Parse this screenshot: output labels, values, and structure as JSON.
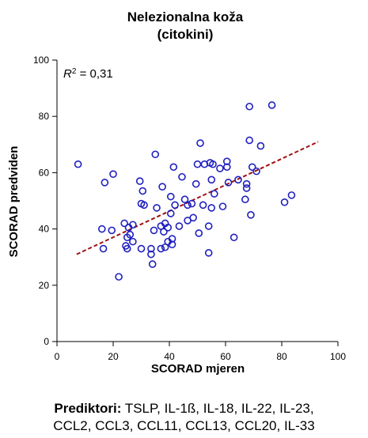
{
  "chart_data": {
    "type": "scatter",
    "title": [
      "Nelezionalna koža",
      "(citokini)"
    ],
    "xlabel": "SCORAD mjeren",
    "ylabel": "SCORAD predviden",
    "xlim": [
      0,
      100
    ],
    "ylim": [
      0,
      100
    ],
    "xticks": [
      0,
      20,
      40,
      60,
      80,
      100
    ],
    "yticks": [
      0,
      20,
      40,
      60,
      80,
      100
    ],
    "annotation": {
      "prefix": "R",
      "sup": "2",
      "suffix": " = 0,31"
    },
    "grid": false,
    "colors": {
      "points": "#1f1fbf",
      "trendline": "#a01010"
    },
    "trendline": {
      "style": "dashed",
      "x": [
        7,
        93
      ],
      "y": [
        31,
        71
      ]
    },
    "points": [
      [
        7.5,
        63
      ],
      [
        16,
        40
      ],
      [
        16.5,
        33
      ],
      [
        17,
        56.5
      ],
      [
        19.5,
        39.5
      ],
      [
        20,
        59.5
      ],
      [
        22,
        23
      ],
      [
        24,
        42
      ],
      [
        24.5,
        34
      ],
      [
        25,
        37
      ],
      [
        25,
        33
      ],
      [
        25.5,
        40.5
      ],
      [
        26,
        38
      ],
      [
        27,
        41.5
      ],
      [
        27,
        35.5
      ],
      [
        29.5,
        57
      ],
      [
        30,
        49
      ],
      [
        30,
        33
      ],
      [
        30.5,
        53.5
      ],
      [
        31,
        48.5
      ],
      [
        33.5,
        33
      ],
      [
        33.5,
        31
      ],
      [
        34,
        27.5
      ],
      [
        34.5,
        39.5
      ],
      [
        35,
        66.5
      ],
      [
        35.5,
        47.5
      ],
      [
        37,
        41
      ],
      [
        37,
        33
      ],
      [
        37.5,
        55
      ],
      [
        38,
        39
      ],
      [
        38.5,
        42
      ],
      [
        38.5,
        33.5
      ],
      [
        39.5,
        40.5
      ],
      [
        39.5,
        35.5
      ],
      [
        40.5,
        51.5
      ],
      [
        40.5,
        45.5
      ],
      [
        41,
        36.5
      ],
      [
        41,
        34.5
      ],
      [
        41.5,
        62
      ],
      [
        42,
        48.5
      ],
      [
        43.5,
        41
      ],
      [
        44.5,
        58.5
      ],
      [
        45.5,
        50.5
      ],
      [
        46.5,
        43
      ],
      [
        46.5,
        48.5
      ],
      [
        48,
        49
      ],
      [
        48.5,
        44
      ],
      [
        49.5,
        56
      ],
      [
        50,
        63
      ],
      [
        50.5,
        38.5
      ],
      [
        51,
        70.5
      ],
      [
        52,
        48.5
      ],
      [
        52.5,
        63
      ],
      [
        54,
        31.5
      ],
      [
        54,
        41
      ],
      [
        54.5,
        63.5
      ],
      [
        55,
        57.5
      ],
      [
        55,
        47.5
      ],
      [
        55.5,
        63
      ],
      [
        56,
        52.5
      ],
      [
        58,
        61.5
      ],
      [
        59,
        48
      ],
      [
        60.5,
        64
      ],
      [
        60.5,
        62
      ],
      [
        61,
        56.5
      ],
      [
        63,
        37
      ],
      [
        64.5,
        57.5
      ],
      [
        67,
        50.5
      ],
      [
        67.5,
        56
      ],
      [
        67.5,
        54.5
      ],
      [
        68.5,
        83.5
      ],
      [
        68.5,
        71.5
      ],
      [
        69,
        45
      ],
      [
        69.5,
        62
      ],
      [
        71,
        60.5
      ],
      [
        72.5,
        69.5
      ],
      [
        76.5,
        84
      ],
      [
        81,
        49.5
      ],
      [
        83.5,
        52
      ]
    ]
  },
  "footnote": {
    "label": "Prediktori:",
    "line1": " TSLP, IL-1ß, IL-18, IL-22, IL-23,",
    "line2": "CCL2, CCL3, CCL11, CCL13, CCL20, IL-33"
  }
}
